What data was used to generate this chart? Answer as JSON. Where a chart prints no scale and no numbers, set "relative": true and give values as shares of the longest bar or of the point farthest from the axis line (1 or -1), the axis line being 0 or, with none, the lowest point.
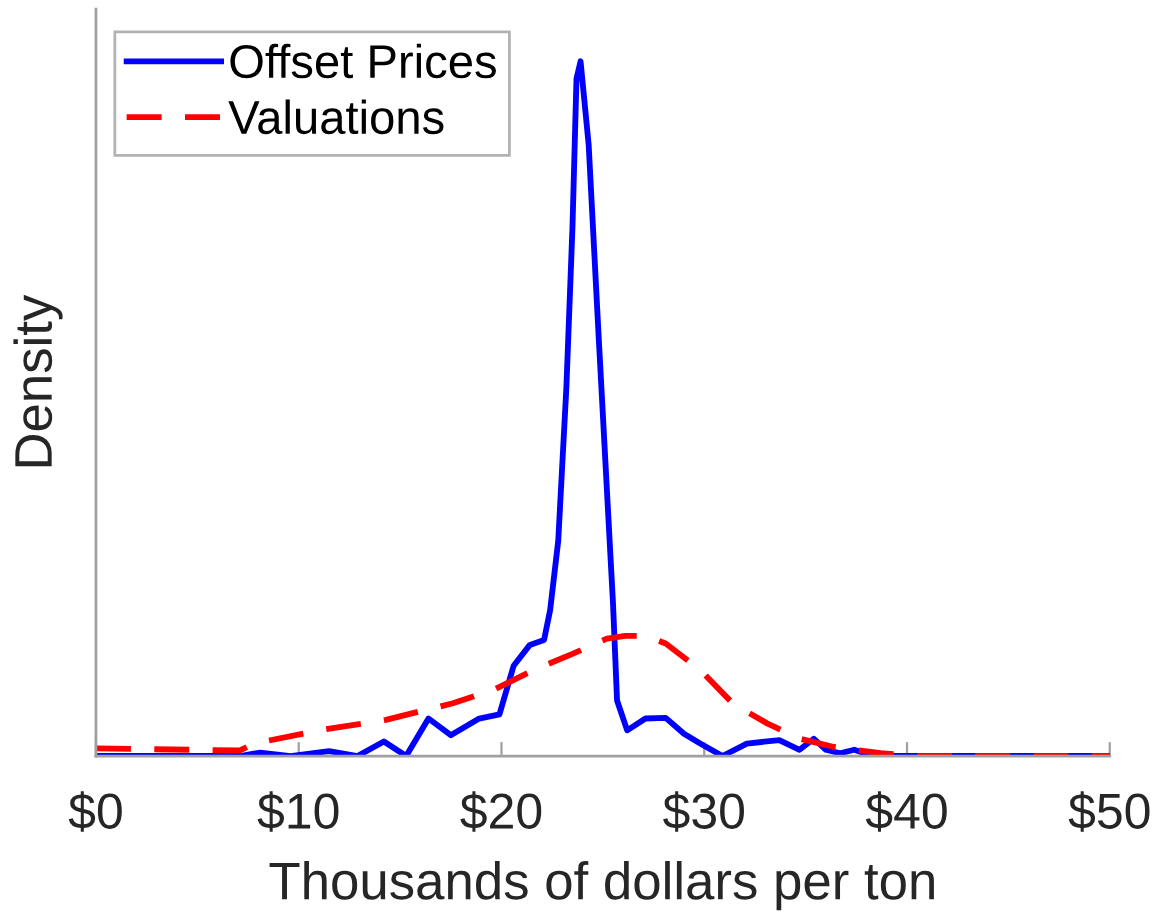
{
  "chart_data": {
    "type": "line",
    "relative": true,
    "xlabel": "Thousands of dollars per ton",
    "ylabel": "Density",
    "xlim": [
      0,
      50
    ],
    "xticks": [
      {
        "value": 0,
        "label": "$0"
      },
      {
        "value": 10,
        "label": "$10"
      },
      {
        "value": 20,
        "label": "$20"
      },
      {
        "value": 30,
        "label": "$30"
      },
      {
        "value": 40,
        "label": "$40"
      },
      {
        "value": 50,
        "label": "$50"
      }
    ],
    "legend": "top left",
    "grid": false,
    "series": [
      {
        "name": "Offset Prices",
        "color": "#0000ff",
        "line_style": "solid",
        "x": [
          0,
          7.1,
          8.1,
          9.6,
          11.5,
          12.9,
          14.2,
          15.3,
          16.4,
          17.5,
          18.9,
          19.9,
          20.6,
          21.4,
          22.1,
          22.4,
          22.8,
          23.2,
          23.5,
          23.7,
          23.9,
          24.3,
          24.8,
          25.5,
          25.7,
          26.2,
          27.1,
          28.1,
          29.0,
          29.8,
          30.9,
          32.1,
          33.7,
          34.7,
          35.4,
          36.0,
          36.7,
          37.4,
          38.3,
          50
        ],
        "values": [
          0,
          0,
          0.005,
          0,
          0.007,
          0,
          0.021,
          0,
          0.054,
          0.03,
          0.054,
          0.06,
          0.13,
          0.16,
          0.167,
          0.21,
          0.31,
          0.53,
          0.76,
          0.975,
          1,
          0.88,
          0.6,
          0.22,
          0.08,
          0.037,
          0.054,
          0.055,
          0.032,
          0.018,
          0,
          0.018,
          0.023,
          0.009,
          0.025,
          0.009,
          0.004,
          0.009,
          0,
          0
        ]
      },
      {
        "name": "Valuations",
        "color": "#ff0000",
        "line_style": "dashed",
        "x": [
          0,
          7.1,
          7.8,
          11,
          14.3,
          17.6,
          19.6,
          21.6,
          23.5,
          25.2,
          26.1,
          27.1,
          28.1,
          29.8,
          31.4,
          33.1,
          34.7,
          36.4,
          38.7,
          40.6,
          50
        ],
        "values": [
          0.011,
          0.008,
          0.018,
          0.037,
          0.052,
          0.076,
          0.095,
          0.124,
          0.147,
          0.169,
          0.173,
          0.173,
          0.162,
          0.124,
          0.076,
          0.047,
          0.025,
          0.013,
          0.004,
          0,
          0
        ]
      }
    ]
  }
}
